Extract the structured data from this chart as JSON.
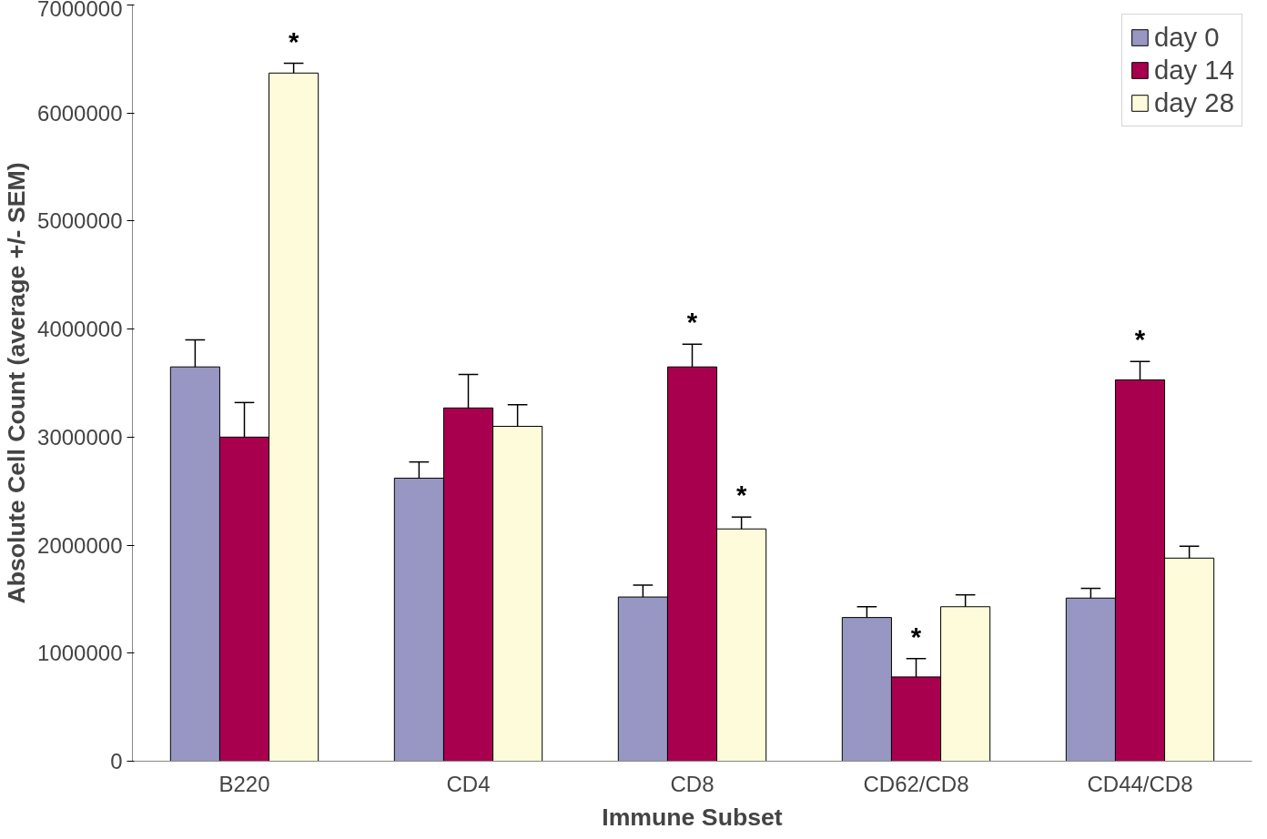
{
  "chart_data": {
    "type": "bar",
    "xlabel": "Immune Subset",
    "ylabel": "Absolute Cell Count (average +/- SEM)",
    "categories": [
      "B220",
      "CD4",
      "CD8",
      "CD62/CD8",
      "CD44/CD8"
    ],
    "series": [
      {
        "name": "day 0",
        "color": "#9896c2",
        "values": [
          3650000,
          2620000,
          1520000,
          1330000,
          1510000
        ],
        "errors": [
          [
            3650000,
            3900000
          ],
          [
            2620000,
            2770000
          ],
          [
            1520000,
            1630000
          ],
          [
            1330000,
            1430000
          ],
          [
            1510000,
            1600000
          ]
        ]
      },
      {
        "name": "day 14",
        "color": "#a8004e",
        "values": [
          3000000,
          3270000,
          3650000,
          780000,
          3530000
        ],
        "errors": [
          [
            3000000,
            3320000
          ],
          [
            3270000,
            3580000
          ],
          [
            3650000,
            3860000
          ],
          [
            780000,
            950000
          ],
          [
            3530000,
            3700000
          ]
        ]
      },
      {
        "name": "day 28",
        "color": "#fdfbd9",
        "values": [
          6370000,
          3100000,
          2150000,
          1430000,
          1880000
        ],
        "errors": [
          [
            6370000,
            6460000
          ],
          [
            3100000,
            3300000
          ],
          [
            2150000,
            2260000
          ],
          [
            1430000,
            1540000
          ],
          [
            1880000,
            1990000
          ]
        ]
      }
    ],
    "ylim": [
      0,
      7000000
    ],
    "yticks": [
      0,
      1000000,
      2000000,
      3000000,
      4000000,
      5000000,
      6000000,
      7000000
    ],
    "legend": "top right",
    "annotations": [
      {
        "text": "*",
        "y": 6370000
      },
      {
        "text": "*",
        "x": "CD8",
        "y": 3650000
      },
      {
        "text": "*",
        "y": 2150000
      },
      {
        "text": "*",
        "x": "CD62/CD8",
        "y": 780000
      },
      {
        "text": "*",
        "x": "CD44/CD8",
        "y": 3530000
      }
    ]
  }
}
